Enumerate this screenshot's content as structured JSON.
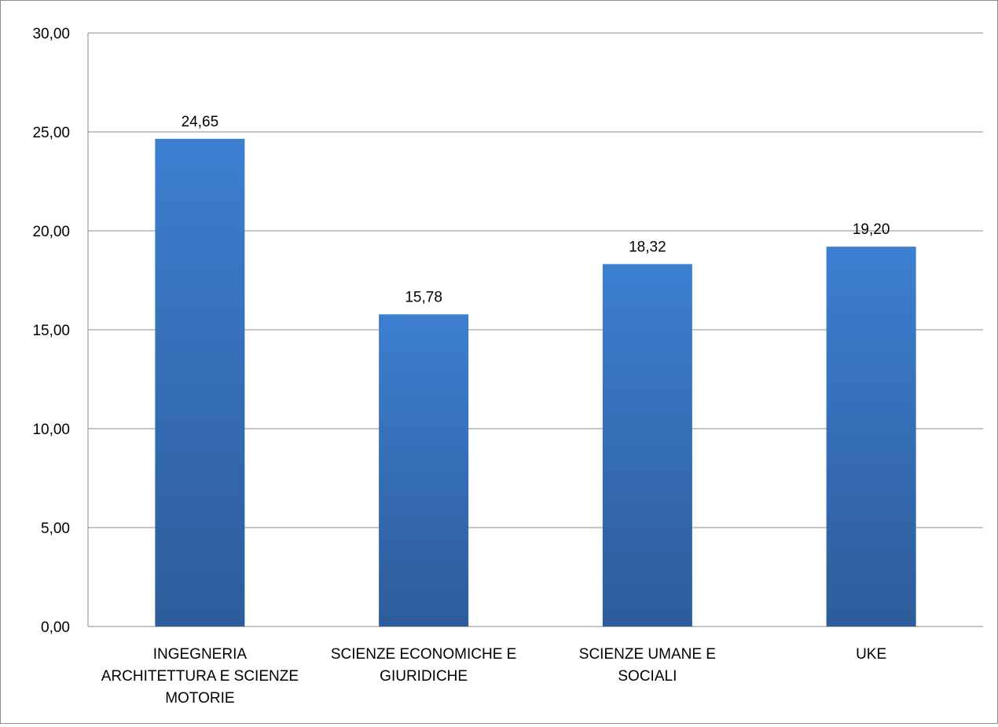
{
  "chart_data": {
    "type": "bar",
    "title": "",
    "xlabel": "",
    "ylabel": "",
    "ylim": [
      0,
      30
    ],
    "yticks": [
      0,
      5,
      10,
      15,
      20,
      25,
      30
    ],
    "ytick_labels": [
      "0,00",
      "5,00",
      "10,00",
      "15,00",
      "20,00",
      "25,00",
      "30,00"
    ],
    "grid": true,
    "legend": "none",
    "categories": [
      [
        "INGEGNERIA",
        "ARCHITETTURA E SCIENZE",
        "MOTORIE"
      ],
      [
        "SCIENZE ECONOMICHE E",
        "GIURIDICHE"
      ],
      [
        "SCIENZE UMANE E",
        "SOCIALI"
      ],
      [
        "UKE"
      ]
    ],
    "values": [
      24.65,
      15.78,
      18.32,
      19.2
    ],
    "value_labels": [
      "24,65",
      "15,78",
      "18,32",
      "19,20"
    ],
    "colors": {
      "bar_top": "#3d7fd1",
      "bar_bottom": "#2d5c99",
      "grid": "#8c8c8c"
    }
  }
}
